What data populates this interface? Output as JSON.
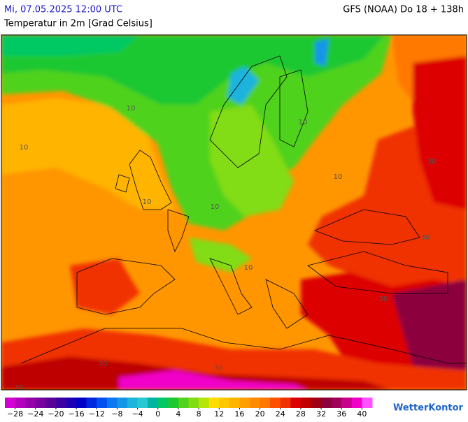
{
  "header": {
    "date": "Mi, 07.05.2025 12:00 UTC",
    "model": "GFS (NOAA) Do 18 + 138h",
    "title": "Temperatur in 2m [Grad Celsius]"
  },
  "map": {
    "contour_labels": [
      "10",
      "10",
      "10",
      "10",
      "10",
      "10",
      "10",
      "30",
      "30",
      "30",
      "30",
      "30",
      "30"
    ]
  },
  "colorbar": {
    "range": [
      -30,
      42
    ],
    "colors": [
      "#d200d2",
      "#b400be",
      "#9600aa",
      "#7800a0",
      "#5a0096",
      "#3c00a0",
      "#1e00b4",
      "#0000c8",
      "#0028dc",
      "#0050f0",
      "#0a78f0",
      "#1496e6",
      "#1eb4dc",
      "#28c8d2",
      "#00b4a0",
      "#00c864",
      "#1ec832",
      "#50d21e",
      "#82dc14",
      "#b4e60a",
      "#ffdc00",
      "#ffc800",
      "#ffb400",
      "#ffa000",
      "#ff8c00",
      "#ff7800",
      "#ff5000",
      "#f03200",
      "#dc0000",
      "#be0000",
      "#a00014",
      "#8c003c",
      "#a0005a",
      "#c8008c",
      "#f000c8",
      "#ff50ff"
    ],
    "ticks": [
      {
        "value": -28,
        "label": "−28"
      },
      {
        "value": -24,
        "label": "−24"
      },
      {
        "value": -20,
        "label": "−20"
      },
      {
        "value": -16,
        "label": "−16"
      },
      {
        "value": -12,
        "label": "−12"
      },
      {
        "value": -8,
        "label": "−8"
      },
      {
        "value": -4,
        "label": "−4"
      },
      0,
      4,
      8,
      12,
      16,
      20,
      24,
      28,
      32,
      36,
      40
    ]
  },
  "logo": "WetterKontor"
}
